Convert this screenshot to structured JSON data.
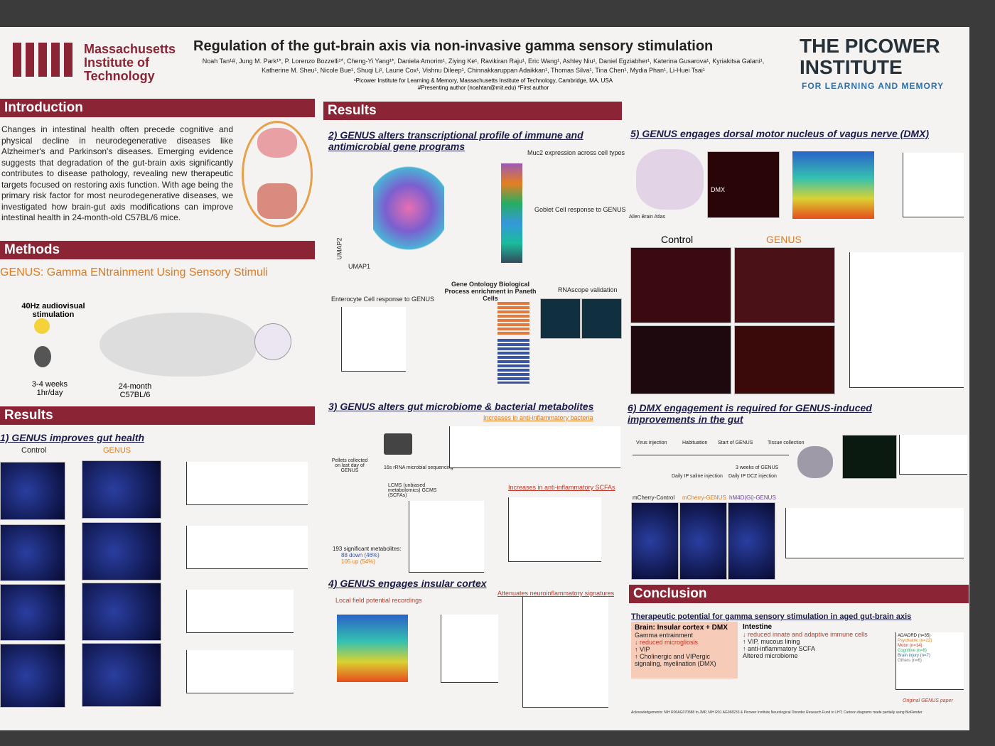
{
  "header": {
    "mit": [
      "Massachusetts",
      "Institute of",
      "Technology"
    ],
    "title": "Regulation of the gut-brain axis via non-invasive gamma sensory stimulation",
    "authors": "Noah Tan¹#, Jung M. Park¹*, P. Lorenzo Bozzelli¹*, Cheng-Yi Yang¹*, Daniela Amorim¹, Ziying Ke¹, Ravikiran Raju¹, Eric Wang¹, Ashley Niu¹, Daniel Egziabher¹, Katerina Gusarova¹, Kyriakitsa Galani¹, Katherine M. Sheu¹, Nicole Bue¹, Shuqi Li¹, Laurie Cox¹, Vishnu Dileep¹, Chinnakkaruppan Adaikkan¹, Thomas Silva¹, Tina Chen¹, Mydia Phan¹, Li-Huei Tsai¹",
    "affiliation": "¹Picower Institute for Learning & Memory, Massachusetts Institute of Technology, Cambridge, MA, USA",
    "notes": "#Presenting author (noahtan@mit.edu) *First author",
    "picower": [
      "THE PICOWER",
      "INSTITUTE"
    ],
    "picower_sub": "FOR LEARNING AND MEMORY"
  },
  "introduction": {
    "heading": "Introduction",
    "text": "Changes in intestinal health often precede cognitive and physical decline in neurodegenerative diseases like Alzheimer's and Parkinson's diseases. Emerging evidence suggests that degradation of the gut-brain axis significantly contributes to disease pathology, revealing new therapeutic targets focused on restoring axis function. With age being the primary risk factor for most neurodegenerative diseases, we investigated how brain-gut axis modifications can improve intestinal health in 24-month-old C57BL/6 mice."
  },
  "methods": {
    "heading": "Methods",
    "genus": "GENUS: Gamma ENtrainment Using Sensory Stimuli",
    "stim": "40Hz audiovisual stimulation",
    "duration": "3-4 weeks 1hr/day",
    "mouse": "24-month C57BL/6"
  },
  "results_left": {
    "heading": "Results",
    "section": "1) GENUS improves gut health",
    "control": "Control",
    "genus": "GENUS"
  },
  "results": {
    "heading": "Results",
    "s2": {
      "title": "2) GENUS alters transcriptional profile of immune and antimicrobial gene programs",
      "muc2": "Muc2 expression across cell types",
      "goblet": "Goblet Cell response to GENUS",
      "enterocyte": "Enterocyte Cell response to GENUS",
      "go": "Gene Ontology Biological Process enrichment in Paneth Cells",
      "rnascope": "RNAscope validation",
      "umap1": "UMAP1",
      "umap2": "UMAP2"
    },
    "s3": {
      "title": "3) GENUS alters gut microbiome & bacterial metabolites",
      "bacteria": "Increases in anti-inflammatory bacteria",
      "scfa": "Increases in anti-inflammatory SCFAs",
      "pellets": "Pellets collected on last day of GENUS",
      "seq": "16s rRNA microbial sequencing",
      "lcms": "LCMS (unbiased metabolomics) GCMS (SCFAs)",
      "metabolites": "193 significant metabolites:",
      "down": "88 down (46%)",
      "up": "105 up (54%)"
    },
    "s4": {
      "title": "4) GENUS engages insular cortex",
      "lfp": "Local field potential recordings",
      "attenuates": "Attenuates neuroinflammatory signatures"
    },
    "s5": {
      "title": "5) GENUS engages dorsal motor nucleus of vagus nerve (DMX)",
      "atlas": "Allen Brain Atlas",
      "dmx": "DMX",
      "control": "Control",
      "genus": "GENUS"
    },
    "s6": {
      "title": "6) DMX engagement is required for GENUS-induced improvements in the gut",
      "steps": [
        "Virus injection",
        "Habituation",
        "Start of GENUS",
        "Tissue collection"
      ],
      "saline": "Daily IP saline injection",
      "dcz": "Daily IP DCZ injection",
      "weeks": "3 weeks of GENUS",
      "groups": [
        "mCherry-Control",
        "mCherry-GENUS",
        "hM4D(Gi)-GENUS"
      ]
    }
  },
  "conclusion": {
    "heading": "Conclusion",
    "subtitle": "Therapeutic potential for gamma sensory stimulation in aged gut-brain axis",
    "brain": {
      "title": "Brain: Insular cortex + DMX",
      "items": [
        "Gamma entrainment",
        "↓ reduced microgliosis",
        "↑ VIP",
        "↑ Cholinergic and VIPergic signaling, myelination (DMX)"
      ]
    },
    "intestine": {
      "title": "Intestine",
      "items": [
        "↓ reduced innate and adaptive immune cells",
        "↑ VIP, mucous lining",
        "↑ anti-inflammatory SCFA",
        "Altered microbiome"
      ]
    },
    "trials": [
      "AD/ADRD (n=35)",
      "Psychiatric (n=22)",
      "Motor (n=14)",
      "Cognitive (n=8)",
      "Brain injury (n=7)",
      "Others (n=6)"
    ],
    "original": "Original GENUS paper",
    "ack": "Acknowledgements: NIH R00AG070588 to JMP, NIH R01 AG068233 & Picower Institute Neurological Disorder Research Fund to LHT; Cartoon diagrams made partially using BioRender"
  }
}
